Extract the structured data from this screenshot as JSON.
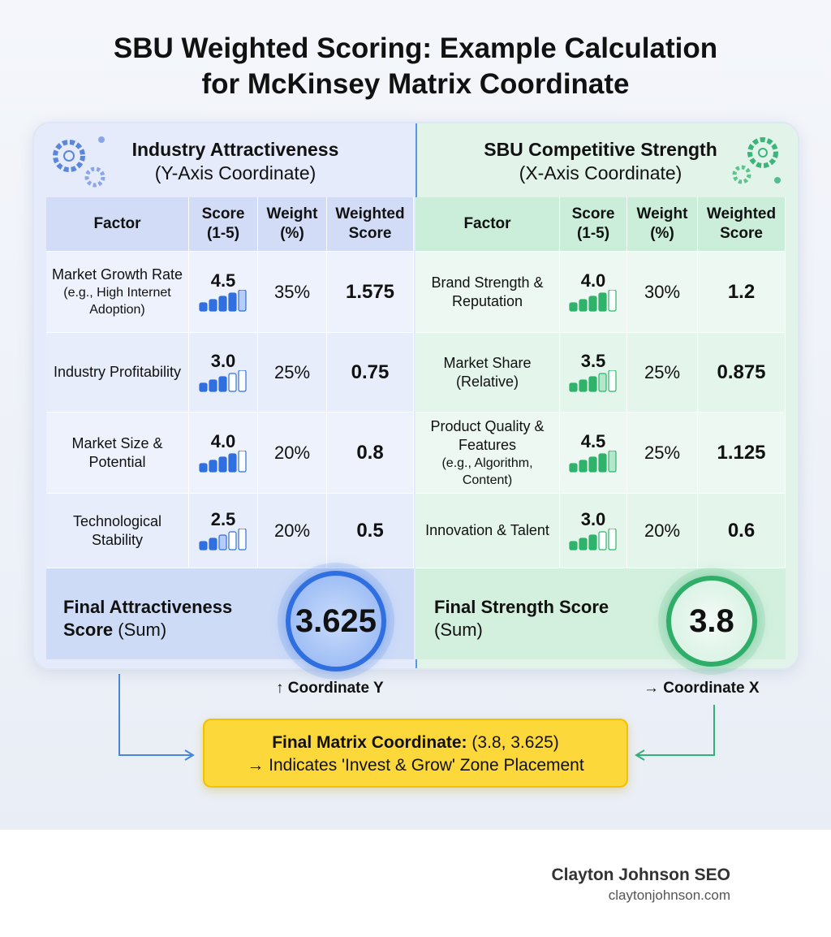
{
  "title": [
    "SBU Weighted Scoring: Example Calculation",
    "for McKinsey Matrix Coordinate"
  ],
  "panels": [
    {
      "heading": "Industry Attractiveness",
      "subheading": "(Y-Axis Coordinate)",
      "columns": [
        "Factor",
        "Score (1-5)",
        "Weight (%)",
        "Weighted Score"
      ],
      "rows": [
        {
          "factor": "Market Growth Rate",
          "note": "(e.g., High Internet Adoption)",
          "score": "4.5",
          "weight": "35%",
          "weighted": "1.575"
        },
        {
          "factor": "Industry Profitability",
          "score": "3.0",
          "weight": "25%",
          "weighted": "0.75"
        },
        {
          "factor": "Market Size & Potential",
          "score": "4.0",
          "weight": "20%",
          "weighted": "0.8"
        },
        {
          "factor": "Technological Stability",
          "score": "2.5",
          "weight": "20%",
          "weighted": "0.5"
        }
      ],
      "final_label": "Final Attractiveness Score",
      "final_suffix": "(Sum)",
      "final_value": "3.625",
      "coordinate": "↑ Coordinate Y"
    },
    {
      "heading": "SBU Competitive Strength",
      "subheading": "(X-Axis Coordinate)",
      "columns": [
        "Factor",
        "Score (1-5)",
        "Weight (%)",
        "Weighted Score"
      ],
      "rows": [
        {
          "factor": "Brand Strength & Reputation",
          "score": "4.0",
          "weight": "30%",
          "weighted": "1.2"
        },
        {
          "factor": "Market Share (Relative)",
          "score": "3.5",
          "weight": "25%",
          "weighted": "0.875"
        },
        {
          "factor": "Product Quality & Features",
          "note": "(e.g., Algorithm, Content)",
          "score": "4.5",
          "weight": "25%",
          "weighted": "1.125"
        },
        {
          "factor": "Innovation & Talent",
          "score": "3.0",
          "weight": "20%",
          "weighted": "0.6"
        }
      ],
      "final_label": "Final Strength Score",
      "final_suffix": "(Sum)",
      "final_value": "3.8",
      "coordinate": "→ Coordinate X"
    }
  ],
  "coordinate_box": {
    "label": "Final Matrix Coordinate:",
    "value": "(3.8, 3.625)",
    "note": "→ Indicates 'Invest & Grow' Zone Placement"
  },
  "footer": {
    "brand": "Clayton Johnson SEO",
    "url": "claytonjohnson.com"
  }
}
